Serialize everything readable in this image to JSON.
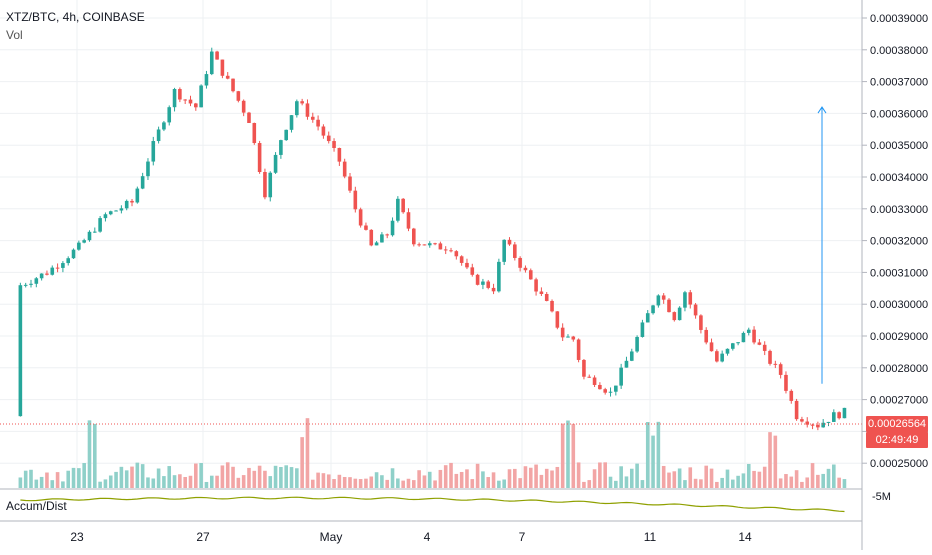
{
  "legend": {
    "symbol": "XTZ/BTC, 4h, COINBASE",
    "volume_label": "Vol",
    "indicator_label": "Accum/Dist"
  },
  "price_axis": {
    "ticks": [
      "0.00039000",
      "0.00038000",
      "0.00037000",
      "0.00036000",
      "0.00035000",
      "0.00034000",
      "0.00033000",
      "0.00032000",
      "0.00031000",
      "0.00030000",
      "0.00029000",
      "0.00028000",
      "0.00027000",
      "0.00026000",
      "0.00025000"
    ],
    "last_price": "0.00026564",
    "countdown": "02:49:49"
  },
  "indicator_axis": {
    "ticks": [
      "-5M"
    ]
  },
  "time_axis": {
    "ticks": [
      "23",
      "27",
      "May",
      "4",
      "7",
      "11",
      "14"
    ]
  },
  "colors": {
    "up": "#26a69a",
    "down": "#ef5350",
    "up_volume": "#8fd0c9",
    "down_volume": "#f2a5a5",
    "accum_dist": "#8fa000",
    "arrow": "#2196f3",
    "grid": "#eef0f3"
  },
  "chart_data": {
    "type": "candlestick",
    "title": "XTZ/BTC, 4h, COINBASE",
    "ylim": [
      0.000245,
      0.000396
    ],
    "x": [
      "23",
      "27",
      "May",
      "4",
      "7",
      "11",
      "14"
    ],
    "close_anchors": [
      {
        "t": "Apr 20 16:00",
        "v": 0.000306
      },
      {
        "t": "Apr 21 12:00",
        "v": 0.00031
      },
      {
        "t": "Apr 22 12:00",
        "v": 0.000318
      },
      {
        "t": "Apr 23 08:00",
        "v": 0.000328
      },
      {
        "t": "Apr 24 04:00",
        "v": 0.000332
      },
      {
        "t": "Apr 24 20:00",
        "v": 0.00035
      },
      {
        "t": "Apr 25 12:00",
        "v": 0.000367
      },
      {
        "t": "Apr 26 04:00",
        "v": 0.000362
      },
      {
        "t": "Apr 26 16:00",
        "v": 0.000379
      },
      {
        "t": "Apr 27 04:00",
        "v": 0.00037
      },
      {
        "t": "Apr 27 20:00",
        "v": 0.000358
      },
      {
        "t": "Apr 28 08:00",
        "v": 0.000335
      },
      {
        "t": "Apr 28 20:00",
        "v": 0.000352
      },
      {
        "t": "Apr 29 08:00",
        "v": 0.000364
      },
      {
        "t": "Apr 30 00:00",
        "v": 0.000356
      },
      {
        "t": "Apr 30 16:00",
        "v": 0.000345
      },
      {
        "t": "May 1 04:00",
        "v": 0.00033
      },
      {
        "t": "May 1 16:00",
        "v": 0.000318
      },
      {
        "t": "May 2 04:00",
        "v": 0.000322
      },
      {
        "t": "May 2 12:00",
        "v": 0.000332
      },
      {
        "t": "May 3 00:00",
        "v": 0.00032
      },
      {
        "t": "May 3 16:00",
        "v": 0.000318
      },
      {
        "t": "May 4 04:00",
        "v": 0.000318
      },
      {
        "t": "May 4 20:00",
        "v": 0.000308
      },
      {
        "t": "May 5 12:00",
        "v": 0.000305
      },
      {
        "t": "May 5 20:00",
        "v": 0.00032
      },
      {
        "t": "May 6 12:00",
        "v": 0.00031
      },
      {
        "t": "May 7 04:00",
        "v": 0.0003
      },
      {
        "t": "May 7 16:00",
        "v": 0.00029
      },
      {
        "t": "May 8 00:00",
        "v": 0.000289
      },
      {
        "t": "May 8 08:00",
        "v": 0.000277
      },
      {
        "t": "May 8 16:00",
        "v": 0.000276
      },
      {
        "t": "May 9 04:00",
        "v": 0.000272
      },
      {
        "t": "May 9 16:00",
        "v": 0.000282
      },
      {
        "t": "May 10 04:00",
        "v": 0.000293
      },
      {
        "t": "May 10 16:00",
        "v": 0.000304
      },
      {
        "t": "May 11 04:00",
        "v": 0.000296
      },
      {
        "t": "May 11 12:00",
        "v": 0.000304
      },
      {
        "t": "May 12 00:00",
        "v": 0.000292
      },
      {
        "t": "May 12 12:00",
        "v": 0.000282
      },
      {
        "t": "May 13 00:00",
        "v": 0.000287
      },
      {
        "t": "May 13 12:00",
        "v": 0.000292
      },
      {
        "t": "May 14 00:00",
        "v": 0.000284
      },
      {
        "t": "May 14 12:00",
        "v": 0.000278
      },
      {
        "t": "May 15 00:00",
        "v": 0.000265
      },
      {
        "t": "May 15 16:00",
        "v": 0.000262
      },
      {
        "t": "May 16 04:00",
        "v": 0.000265
      },
      {
        "t": "May 16 12:00",
        "v": 0.000266
      }
    ],
    "volume_hint": "volume bars under candles, mostly small with spikes on Apr 23, Apr 30, May 8, May 10 and May 16",
    "annotation": "blue upward arrow drawn from about 0.000275 to about 0.000362 near May 16"
  }
}
